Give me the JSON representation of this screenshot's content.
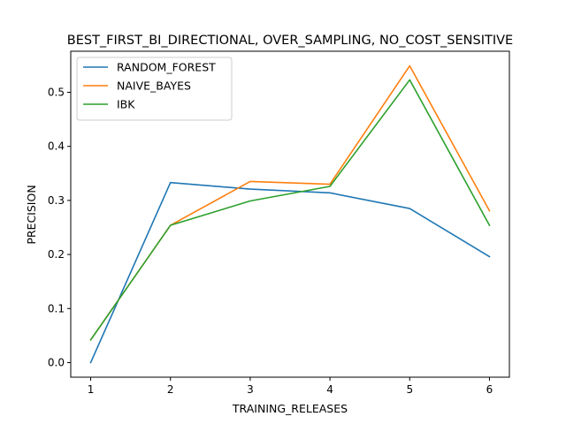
{
  "chart_data": {
    "type": "line",
    "title": "BEST_FIRST_BI_DIRECTIONAL, OVER_SAMPLING, NO_COST_SENSITIVE",
    "xlabel": "TRAINING_RELEASES",
    "ylabel": "PRECISION",
    "x": [
      1,
      2,
      3,
      4,
      5,
      6
    ],
    "xticks": [
      "1",
      "2",
      "3",
      "4",
      "5",
      "6"
    ],
    "yticks": [
      "0.0",
      "0.1",
      "0.2",
      "0.3",
      "0.4",
      "0.5"
    ],
    "xlim": [
      0.75,
      6.25
    ],
    "ylim": [
      -0.027,
      0.576
    ],
    "grid": false,
    "legend_position": "upper left",
    "series": [
      {
        "name": "RANDOM_FOREST",
        "color": "#1f77b4",
        "values": [
          0.0,
          0.333,
          0.321,
          0.314,
          0.285,
          0.196
        ]
      },
      {
        "name": "NAIVE_BAYES",
        "color": "#ff7f0e",
        "values": [
          0.042,
          0.254,
          0.335,
          0.33,
          0.549,
          0.281
        ]
      },
      {
        "name": "IBK",
        "color": "#2ca02c",
        "values": [
          0.042,
          0.254,
          0.299,
          0.326,
          0.523,
          0.254
        ]
      }
    ]
  }
}
